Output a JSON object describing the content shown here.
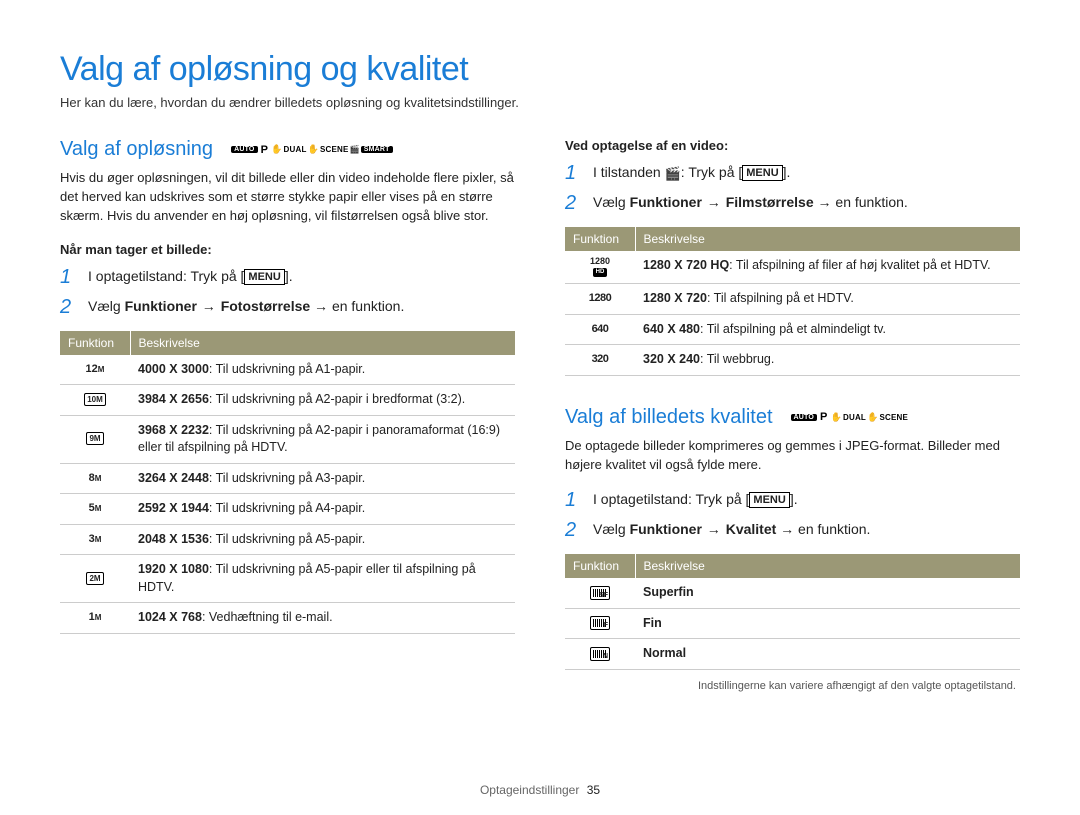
{
  "title": "Valg af opløsning og kvalitet",
  "subtitle": "Her kan du lære, hvordan du ændrer billedets opløsning og kvalitetsindstillinger.",
  "left": {
    "section_title": "Valg af opløsning",
    "modes": "AUTO  P  ✋ DUAL  ✋  SCENE  🎬  SMART",
    "body": "Hvis du øger opløsningen, vil dit billede eller din video indeholde flere pixler, så det herved kan udskrives som et større stykke papir eller vises på en større skærm. Hvis du anvender en høj opløsning, vil filstørrelsen også blive stor.",
    "subhead": "Når man tager et billede:",
    "step1": "I optagetilstand: Tryk på ",
    "menu_label": "MENU",
    "step2_pre": "Vælg ",
    "step2_b1": "Funktioner",
    "step2_arrow": " → ",
    "step2_b2": "Fotostørrelse",
    "step2_post": " → en funktion.",
    "table_head_func": "Funktion",
    "table_head_desc": "Beskrivelse",
    "rows": [
      {
        "icon": "12M",
        "res": "4000 X 3000",
        "desc": ": Til udskrivning på A1-papir."
      },
      {
        "icon": "10M_box",
        "res": "3984 X 2656",
        "desc": ": Til udskrivning på A2-papir i bredformat (3:2)."
      },
      {
        "icon": "9M_box",
        "res": "3968 X 2232",
        "desc": ": Til udskrivning på A2-papir i panoramaformat (16:9) eller til afspilning på HDTV."
      },
      {
        "icon": "8M",
        "res": "3264 X 2448",
        "desc": ": Til udskrivning på A3-papir."
      },
      {
        "icon": "5M",
        "res": "2592 X 1944",
        "desc": ": Til udskrivning på A4-papir."
      },
      {
        "icon": "3M",
        "res": "2048 X 1536",
        "desc": ": Til udskrivning på A5-papir."
      },
      {
        "icon": "2M_box",
        "res": "1920 X 1080",
        "desc": ": Til udskrivning på A5-papir eller til afspilning på HDTV."
      },
      {
        "icon": "1M",
        "res": "1024 X 768",
        "desc": ": Vedhæftning til e-mail."
      }
    ]
  },
  "right": {
    "video_subhead": "Ved optagelse af en video:",
    "vstep1_pre": "I tilstanden ",
    "vstep1_post": ": Tryk på ",
    "vstep2_pre": "Vælg ",
    "vstep2_b1": "Funktioner",
    "vstep2_arrow": " → ",
    "vstep2_b2": "Filmstørrelse",
    "vstep2_post": " → en funktion.",
    "vtable_head_func": "Funktion",
    "vtable_head_desc": "Beskrivelse",
    "vrows": [
      {
        "icon": "1280HD",
        "res": "1280 X 720 HQ",
        "desc": ": Til afspilning af filer af høj kvalitet på et HDTV."
      },
      {
        "icon": "1280",
        "res": "1280 X 720",
        "desc": ": Til afspilning på et HDTV."
      },
      {
        "icon": "640",
        "res": "640 X 480",
        "desc": ": Til afspilning på et almindeligt tv."
      },
      {
        "icon": "320",
        "res": "320 X 240",
        "desc": ": Til webbrug."
      }
    ],
    "q_section_title": "Valg af billedets kvalitet",
    "q_modes": "AUTO  P  ✋ DUAL  ✋  SCENE",
    "q_body": "De optagede billeder komprimeres og gemmes i JPEG-format. Billeder med højere kvalitet vil også fylde mere.",
    "qstep1": "I optagetilstand: Tryk på ",
    "qstep2_pre": "Vælg ",
    "qstep2_b1": "Funktioner",
    "qstep2_b2": "Kvalitet",
    "qstep2_post": " → en funktion.",
    "qtable_head_func": "Funktion",
    "qtable_head_desc": "Beskrivelse",
    "qrows": [
      {
        "icon": "sf",
        "label": "Superfin"
      },
      {
        "icon": "f",
        "label": "Fin"
      },
      {
        "icon": "n",
        "label": "Normal"
      }
    ],
    "footnote": "Indstillingerne kan variere afhængigt af den valgte optagetilstand."
  },
  "footer_section": "Optageindstillinger",
  "footer_page": "35"
}
